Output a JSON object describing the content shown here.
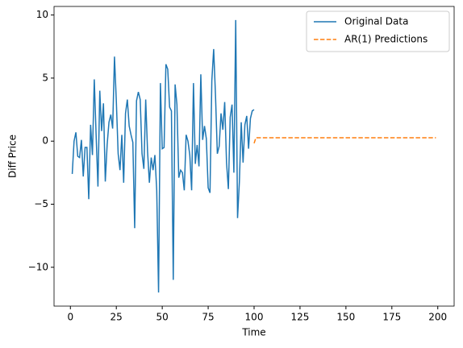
{
  "chart_data": {
    "type": "line",
    "xlabel": "Time",
    "ylabel": "Diff Price",
    "legend": "upper right",
    "xlim": [
      -8.9,
      208.9
    ],
    "ylim": [
      -13.08,
      10.68
    ],
    "xticks": [
      0,
      25,
      50,
      75,
      100,
      125,
      150,
      175,
      200
    ],
    "yticks": [
      {
        "value": -10,
        "label": "−10"
      },
      {
        "value": -5,
        "label": "−5"
      },
      0,
      5,
      10
    ],
    "series": [
      {
        "name": "Original Data",
        "color": "#1f77b4",
        "dash": "solid",
        "x": [
          1,
          2,
          3,
          4,
          5,
          6,
          7,
          8,
          9,
          10,
          11,
          12,
          13,
          14,
          15,
          16,
          17,
          18,
          19,
          20,
          21,
          22,
          23,
          24,
          25,
          26,
          27,
          28,
          29,
          30,
          31,
          32,
          33,
          34,
          35,
          36,
          37,
          38,
          39,
          40,
          41,
          42,
          43,
          44,
          45,
          46,
          47,
          48,
          49,
          50,
          51,
          52,
          53,
          54,
          55,
          56,
          57,
          58,
          59,
          60,
          61,
          62,
          63,
          64,
          65,
          66,
          67,
          68,
          69,
          70,
          71,
          72,
          73,
          74,
          75,
          76,
          77,
          78,
          79,
          80,
          81,
          82,
          83,
          84,
          85,
          86,
          87,
          88,
          89,
          90,
          91,
          92,
          93,
          94,
          95,
          96,
          97,
          98,
          99,
          100
        ],
        "values": [
          -2.6,
          0,
          0.7,
          -1.2,
          -1.3,
          0.1,
          -2.8,
          -0.5,
          -0.5,
          -4.6,
          1.3,
          -1.1,
          4.9,
          0.5,
          -3.6,
          4.0,
          0.8,
          3.0,
          -3.2,
          -0.3,
          1.5,
          2.1,
          1.0,
          6.7,
          3.2,
          -1.0,
          -2.3,
          0.5,
          -3.3,
          2.2,
          3.3,
          1.2,
          0.5,
          -0.1,
          -6.9,
          3.2,
          3.9,
          3.3,
          -1.0,
          -2.2,
          3.3,
          -0.8,
          -3.3,
          -1.3,
          -2.3,
          -1.1,
          -3.9,
          -12.0,
          4.6,
          -0.6,
          -0.5,
          6.1,
          5.7,
          2.7,
          2.4,
          -11.0,
          4.5,
          2.9,
          -2.9,
          -2.3,
          -2.5,
          -3.9,
          0.5,
          0.0,
          -1.1,
          -3.9,
          4.6,
          -1.8,
          -0.3,
          -2.0,
          5.3,
          0.1,
          1.2,
          0.2,
          -3.7,
          -4.1,
          4.8,
          7.3,
          3.6,
          -1.0,
          -0.4,
          2.2,
          0.9,
          3.1,
          -1.7,
          -3.8,
          1.9,
          2.9,
          -2.5,
          9.6,
          -6.1,
          -3.2,
          1.5,
          -1.7,
          1.3,
          2.0,
          -0.6,
          1.8,
          2.4,
          2.5
        ]
      },
      {
        "name": "AR(1) Predictions",
        "color": "#ff7f0e",
        "dash": "dashed",
        "x": [
          100,
          101,
          102,
          103,
          104,
          105,
          106,
          107,
          108,
          109,
          110,
          111,
          112,
          113,
          114,
          115,
          116,
          117,
          118,
          119,
          120,
          121,
          122,
          123,
          124,
          125,
          126,
          127,
          128,
          129,
          130,
          131,
          132,
          133,
          134,
          135,
          136,
          137,
          138,
          139,
          140,
          141,
          142,
          143,
          144,
          145,
          146,
          147,
          148,
          149,
          150,
          151,
          152,
          153,
          154,
          155,
          156,
          157,
          158,
          159,
          160,
          161,
          162,
          163,
          164,
          165,
          166,
          167,
          168,
          169,
          170,
          171,
          172,
          173,
          174,
          175,
          176,
          177,
          178,
          179,
          180,
          181,
          182,
          183,
          184,
          185,
          186,
          187,
          188,
          189,
          190,
          191,
          192,
          193,
          194,
          195,
          196,
          197,
          198,
          199
        ],
        "values": [
          -0.17,
          0.27,
          0.27,
          0.27,
          0.27,
          0.27,
          0.27,
          0.27,
          0.27,
          0.27,
          0.27,
          0.27,
          0.27,
          0.27,
          0.27,
          0.27,
          0.27,
          0.27,
          0.27,
          0.27,
          0.27,
          0.27,
          0.27,
          0.27,
          0.27,
          0.27,
          0.27,
          0.27,
          0.27,
          0.27,
          0.27,
          0.27,
          0.27,
          0.27,
          0.27,
          0.27,
          0.27,
          0.27,
          0.27,
          0.27,
          0.27,
          0.27,
          0.27,
          0.27,
          0.27,
          0.27,
          0.27,
          0.27,
          0.27,
          0.27,
          0.27,
          0.27,
          0.27,
          0.27,
          0.27,
          0.27,
          0.27,
          0.27,
          0.27,
          0.27,
          0.27,
          0.27,
          0.27,
          0.27,
          0.27,
          0.27,
          0.27,
          0.27,
          0.27,
          0.27,
          0.27,
          0.27,
          0.27,
          0.27,
          0.27,
          0.27,
          0.27,
          0.27,
          0.27,
          0.27,
          0.27,
          0.27,
          0.27,
          0.27,
          0.27,
          0.27,
          0.27,
          0.27,
          0.27,
          0.27,
          0.27,
          0.27,
          0.27,
          0.27,
          0.27,
          0.27,
          0.27,
          0.27,
          0.27,
          0.27
        ]
      }
    ]
  }
}
